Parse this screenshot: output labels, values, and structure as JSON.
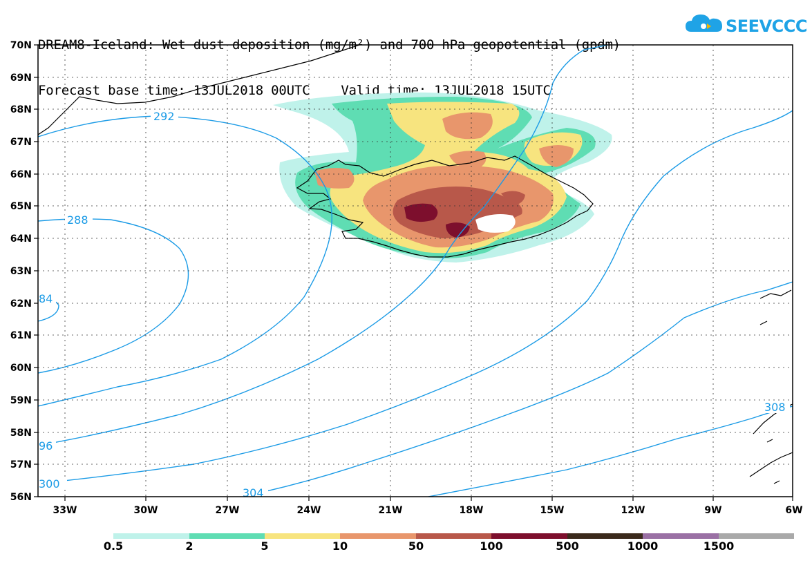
{
  "title": {
    "line1": "DREAM8-Iceland: Wet dust deposition (mg/m²) and 700 hPa geopotential (gpdm)",
    "line2": "Forecast base time: 13JUL2018 00UTC    Valid time: 13JUL2018 15UTC"
  },
  "logo": {
    "text": "SEEVCCC",
    "icon": "cloud-logo-icon",
    "color": "#1fa3e6"
  },
  "map": {
    "lon_range": [
      -34.5,
      -6
    ],
    "lat_range": [
      56,
      70
    ],
    "lon_ticks": [
      "33W",
      "30W",
      "27W",
      "24W",
      "21W",
      "18W",
      "15W",
      "12W",
      "9W",
      "6W"
    ],
    "lat_ticks": [
      "70N",
      "69N",
      "68N",
      "67N",
      "66N",
      "65N",
      "64N",
      "63N",
      "62N",
      "61N",
      "60N",
      "59N",
      "58N",
      "57N",
      "56N"
    ],
    "grid": true
  },
  "contours": {
    "color": "#1b9be6",
    "labels": [
      "292",
      "288",
      "84",
      "96",
      "300",
      "304",
      "308"
    ]
  },
  "legend": {
    "labels": [
      "0.5",
      "2",
      "5",
      "10",
      "50",
      "100",
      "500",
      "1000",
      "1500"
    ],
    "colors": [
      "#bff2ea",
      "#5fddb3",
      "#f7e47f",
      "#e8966c",
      "#b8584a",
      "#7d0f2d",
      "#3b2a1c",
      "#9a70a4",
      "#a9a9a9"
    ]
  }
}
